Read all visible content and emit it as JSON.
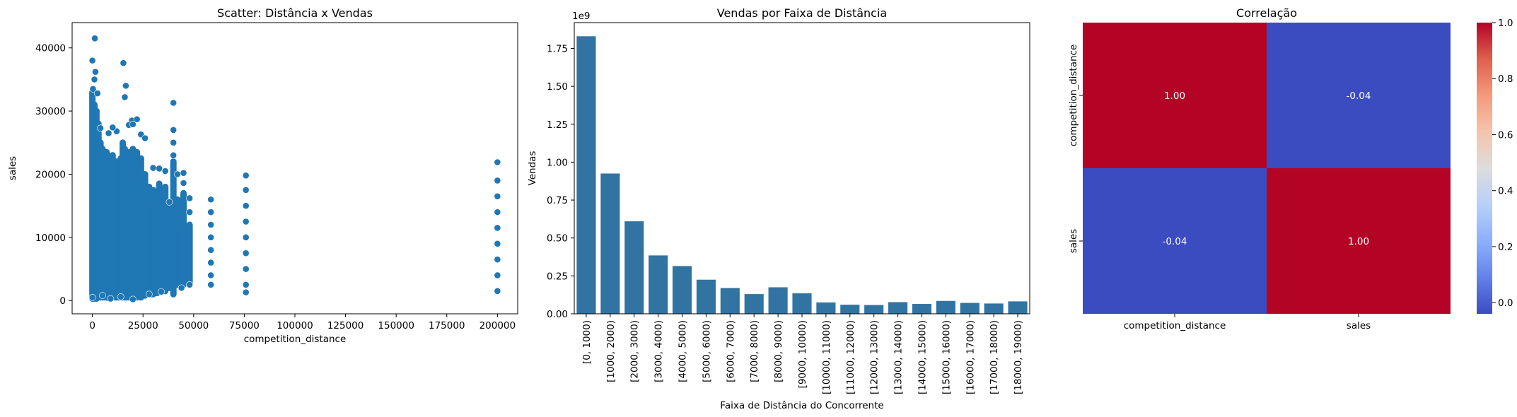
{
  "chart_data": [
    {
      "type": "scatter",
      "title": "Scatter: Distância x Vendas",
      "xlabel": "competition_distance",
      "ylabel": "sales",
      "xlim": [
        -10000,
        210000
      ],
      "ylim": [
        -2100,
        44000
      ],
      "xticks": [
        "0",
        "25000",
        "50000",
        "75000",
        "100000",
        "125000",
        "150000",
        "175000",
        "200000"
      ],
      "yticks": [
        "0",
        "10000",
        "20000",
        "30000",
        "40000"
      ],
      "color": "#1f77b4",
      "points": [
        [
          0,
          38000
        ],
        [
          1200,
          41500
        ],
        [
          1500,
          36200
        ],
        [
          300,
          33500
        ],
        [
          2500,
          32800
        ],
        [
          1000,
          35000
        ],
        [
          15300,
          37600
        ],
        [
          16500,
          34000
        ],
        [
          16000,
          32200
        ],
        [
          40000,
          31300
        ],
        [
          19500,
          28500
        ],
        [
          22000,
          28700
        ],
        [
          4000,
          27300
        ],
        [
          8000,
          26500
        ],
        [
          12000,
          26800
        ],
        [
          18000,
          27800
        ],
        [
          24000,
          26300
        ],
        [
          26000,
          25700
        ],
        [
          10000,
          27400
        ],
        [
          20000,
          27900
        ],
        [
          30000,
          21000
        ],
        [
          33000,
          20900
        ],
        [
          36000,
          20500
        ],
        [
          38000,
          15600
        ],
        [
          40000,
          27000
        ],
        [
          40000,
          25000
        ],
        [
          40000,
          23000
        ],
        [
          42000,
          20000
        ],
        [
          45000,
          20200
        ],
        [
          45000,
          18600
        ],
        [
          48000,
          16200
        ],
        [
          48000,
          14000
        ],
        [
          58500,
          16000
        ],
        [
          58500,
          14000
        ],
        [
          58500,
          12000
        ],
        [
          58500,
          10000
        ],
        [
          58500,
          8000
        ],
        [
          58500,
          6000
        ],
        [
          58500,
          4000
        ],
        [
          58500,
          2500
        ],
        [
          75800,
          19800
        ],
        [
          75800,
          17500
        ],
        [
          75800,
          15000
        ],
        [
          75800,
          12500
        ],
        [
          75800,
          10000
        ],
        [
          75800,
          7500
        ],
        [
          75800,
          5000
        ],
        [
          75800,
          2500
        ],
        [
          75800,
          1300
        ],
        [
          200000,
          21900
        ],
        [
          200000,
          19000
        ],
        [
          200000,
          16500
        ],
        [
          200000,
          14000
        ],
        [
          200000,
          11500
        ],
        [
          200000,
          9000
        ],
        [
          200000,
          6500
        ],
        [
          200000,
          4000
        ],
        [
          200000,
          1500
        ],
        [
          0,
          500
        ],
        [
          5000,
          800
        ],
        [
          9000,
          300
        ],
        [
          14000,
          600
        ],
        [
          20000,
          200
        ],
        [
          28000,
          1000
        ],
        [
          34000,
          1400
        ],
        [
          44000,
          2000
        ],
        [
          48000,
          2500
        ]
      ],
      "dense_columns": [
        {
          "x": 0,
          "ymin": 300,
          "ymax": 33000
        },
        {
          "x": 1000,
          "ymin": 300,
          "ymax": 31000
        },
        {
          "x": 2000,
          "ymin": 300,
          "ymax": 30000
        },
        {
          "x": 3000,
          "ymin": 500,
          "ymax": 28000
        },
        {
          "x": 4000,
          "ymin": 500,
          "ymax": 25000
        },
        {
          "x": 5000,
          "ymin": 500,
          "ymax": 24000
        },
        {
          "x": 6000,
          "ymin": 500,
          "ymax": 23000
        },
        {
          "x": 7000,
          "ymin": 500,
          "ymax": 23500
        },
        {
          "x": 8000,
          "ymin": 400,
          "ymax": 23000
        },
        {
          "x": 9000,
          "ymin": 500,
          "ymax": 22000
        },
        {
          "x": 10000,
          "ymin": 500,
          "ymax": 23000
        },
        {
          "x": 11000,
          "ymin": 500,
          "ymax": 21000
        },
        {
          "x": 12000,
          "ymin": 500,
          "ymax": 22000
        },
        {
          "x": 13000,
          "ymin": 500,
          "ymax": 21000
        },
        {
          "x": 14000,
          "ymin": 500,
          "ymax": 22500
        },
        {
          "x": 15000,
          "ymin": 500,
          "ymax": 25000
        },
        {
          "x": 16000,
          "ymin": 500,
          "ymax": 24000
        },
        {
          "x": 17000,
          "ymin": 500,
          "ymax": 22000
        },
        {
          "x": 18000,
          "ymin": 500,
          "ymax": 23500
        },
        {
          "x": 19000,
          "ymin": 500,
          "ymax": 22000
        },
        {
          "x": 20000,
          "ymin": 500,
          "ymax": 24000
        },
        {
          "x": 21000,
          "ymin": 500,
          "ymax": 21000
        },
        {
          "x": 22000,
          "ymin": 500,
          "ymax": 23500
        },
        {
          "x": 23000,
          "ymin": 600,
          "ymax": 19000
        },
        {
          "x": 24000,
          "ymin": 500,
          "ymax": 22500
        },
        {
          "x": 25000,
          "ymin": 800,
          "ymax": 18000
        },
        {
          "x": 26000,
          "ymin": 800,
          "ymax": 20000
        },
        {
          "x": 27000,
          "ymin": 1000,
          "ymax": 17000
        },
        {
          "x": 28000,
          "ymin": 1000,
          "ymax": 18000
        },
        {
          "x": 29000,
          "ymin": 1000,
          "ymax": 16000
        },
        {
          "x": 30000,
          "ymin": 1000,
          "ymax": 17500
        },
        {
          "x": 31000,
          "ymin": 1200,
          "ymax": 15000
        },
        {
          "x": 32000,
          "ymin": 1200,
          "ymax": 16000
        },
        {
          "x": 33000,
          "ymin": 1500,
          "ymax": 18500
        },
        {
          "x": 34000,
          "ymin": 1500,
          "ymax": 15000
        },
        {
          "x": 35000,
          "ymin": 1500,
          "ymax": 17000
        },
        {
          "x": 36000,
          "ymin": 1500,
          "ymax": 18000
        },
        {
          "x": 37000,
          "ymin": 2000,
          "ymax": 14000
        },
        {
          "x": 38000,
          "ymin": 2000,
          "ymax": 15000
        },
        {
          "x": 39000,
          "ymin": 2500,
          "ymax": 13000
        },
        {
          "x": 40000,
          "ymin": 1000,
          "ymax": 22000
        },
        {
          "x": 41000,
          "ymin": 3000,
          "ymax": 13000
        },
        {
          "x": 42000,
          "ymin": 2500,
          "ymax": 16000
        },
        {
          "x": 43000,
          "ymin": 3000,
          "ymax": 11000
        },
        {
          "x": 44000,
          "ymin": 2000,
          "ymax": 12000
        },
        {
          "x": 45000,
          "ymin": 2500,
          "ymax": 17000
        },
        {
          "x": 46000,
          "ymin": 3000,
          "ymax": 10000
        },
        {
          "x": 47000,
          "ymin": 3000,
          "ymax": 9000
        },
        {
          "x": 48000,
          "ymin": 2500,
          "ymax": 12000
        }
      ]
    },
    {
      "type": "bar",
      "title": "Vendas por Faixa de Distância",
      "xlabel": "Faixa de Distância do Concorrente",
      "ylabel": "Vendas",
      "offset_label": "1e9",
      "ylim": [
        0,
        1.92
      ],
      "yticks": [
        "0.00",
        "0.25",
        "0.50",
        "0.75",
        "1.00",
        "1.25",
        "1.50",
        "1.75"
      ],
      "color": "#3274a1",
      "categories": [
        "[0, 1000)",
        "[1000, 2000)",
        "[2000, 3000)",
        "[3000, 4000)",
        "[4000, 5000)",
        "[5000, 6000)",
        "[6000, 7000)",
        "[7000, 8000)",
        "[8000, 9000)",
        "[9000, 10000)",
        "[10000, 11000)",
        "[11000, 12000)",
        "[12000, 13000)",
        "[13000, 14000)",
        "[14000, 15000)",
        "[15000, 16000)",
        "[16000, 17000)",
        "[17000, 18000)",
        "[18000, 19000)"
      ],
      "values": [
        1.83,
        0.925,
        0.61,
        0.385,
        0.315,
        0.225,
        0.17,
        0.13,
        0.175,
        0.135,
        0.075,
        0.06,
        0.058,
        0.077,
        0.065,
        0.085,
        0.072,
        0.068,
        0.082
      ]
    },
    {
      "type": "heatmap",
      "title": "Correlação",
      "x_categories": [
        "competition_distance",
        "sales"
      ],
      "y_categories": [
        "competition_distance",
        "sales"
      ],
      "values": [
        [
          "1.00",
          "-0.04"
        ],
        [
          "-0.04",
          "1.00"
        ]
      ],
      "cell_colors": [
        [
          "#b40426",
          "#3b4cc0"
        ],
        [
          "#3b4cc0",
          "#b40426"
        ]
      ],
      "colorbar": {
        "ticks": [
          "0.0",
          "0.2",
          "0.4",
          "0.6",
          "0.8",
          "1.0"
        ],
        "range": [
          -0.04,
          1.0
        ],
        "colors": [
          "#3b4cc0",
          "#6282ea",
          "#8db0fe",
          "#b8d0f9",
          "#dddcdc",
          "#f5c4ac",
          "#f49a7b",
          "#de604d",
          "#b40426"
        ]
      }
    }
  ]
}
